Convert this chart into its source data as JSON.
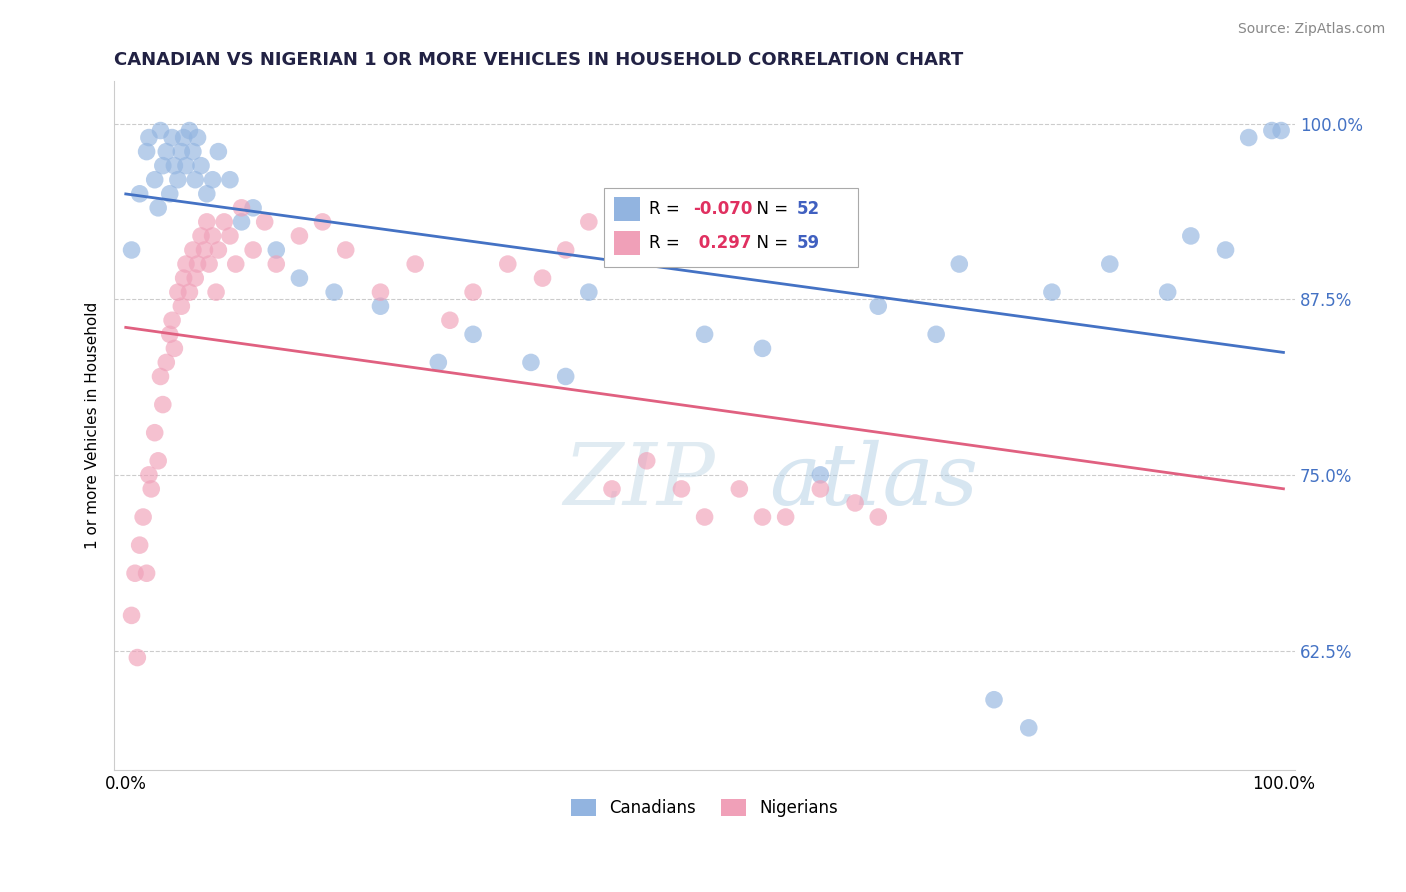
{
  "title": "CANADIAN VS NIGERIAN 1 OR MORE VEHICLES IN HOUSEHOLD CORRELATION CHART",
  "source": "Source: ZipAtlas.com",
  "ylabel": "1 or more Vehicles in Household",
  "yticks": [
    62.5,
    75.0,
    87.5,
    100.0
  ],
  "R_canadian": -0.07,
  "N_canadian": 52,
  "R_nigerian": 0.297,
  "N_nigerian": 59,
  "canadian_color": "#92b4e0",
  "nigerian_color": "#f0a0b8",
  "trendline_canadian_color": "#4472c4",
  "trendline_nigerian_color": "#e06080",
  "legend_R_color": "#e03060",
  "legend_N_color": "#4060c0",
  "watermark_color": "#d0e4f5",
  "canadian_x": [
    0.5,
    1.2,
    1.8,
    2.0,
    2.5,
    2.8,
    3.0,
    3.2,
    3.5,
    3.8,
    4.0,
    4.2,
    4.5,
    4.8,
    5.0,
    5.2,
    5.5,
    5.8,
    6.0,
    6.2,
    6.5,
    7.0,
    7.5,
    8.0,
    9.0,
    10.0,
    11.0,
    13.0,
    15.0,
    18.0,
    22.0,
    27.0,
    30.0,
    35.0,
    38.0,
    40.0,
    50.0,
    55.0,
    60.0,
    65.0,
    70.0,
    72.0,
    75.0,
    78.0,
    80.0,
    85.0,
    90.0,
    92.0,
    95.0,
    97.0,
    99.0,
    99.8
  ],
  "canadian_y": [
    91.0,
    95.0,
    98.0,
    99.0,
    96.0,
    94.0,
    99.5,
    97.0,
    98.0,
    95.0,
    99.0,
    97.0,
    96.0,
    98.0,
    99.0,
    97.0,
    99.5,
    98.0,
    96.0,
    99.0,
    97.0,
    95.0,
    96.0,
    98.0,
    96.0,
    93.0,
    94.0,
    91.0,
    89.0,
    88.0,
    87.0,
    83.0,
    85.0,
    83.0,
    82.0,
    88.0,
    85.0,
    84.0,
    75.0,
    87.0,
    85.0,
    90.0,
    59.0,
    57.0,
    88.0,
    90.0,
    88.0,
    92.0,
    91.0,
    99.0,
    99.5,
    99.5
  ],
  "nigerian_x": [
    0.5,
    0.8,
    1.0,
    1.2,
    1.5,
    1.8,
    2.0,
    2.2,
    2.5,
    2.8,
    3.0,
    3.2,
    3.5,
    3.8,
    4.0,
    4.2,
    4.5,
    4.8,
    5.0,
    5.2,
    5.5,
    5.8,
    6.0,
    6.2,
    6.5,
    6.8,
    7.0,
    7.2,
    7.5,
    7.8,
    8.0,
    8.5,
    9.0,
    9.5,
    10.0,
    11.0,
    12.0,
    13.0,
    15.0,
    17.0,
    19.0,
    22.0,
    25.0,
    28.0,
    30.0,
    33.0,
    36.0,
    38.0,
    40.0,
    42.0,
    45.0,
    48.0,
    50.0,
    53.0,
    55.0,
    57.0,
    60.0,
    63.0,
    65.0
  ],
  "nigerian_y": [
    65.0,
    68.0,
    62.0,
    70.0,
    72.0,
    68.0,
    75.0,
    74.0,
    78.0,
    76.0,
    82.0,
    80.0,
    83.0,
    85.0,
    86.0,
    84.0,
    88.0,
    87.0,
    89.0,
    90.0,
    88.0,
    91.0,
    89.0,
    90.0,
    92.0,
    91.0,
    93.0,
    90.0,
    92.0,
    88.0,
    91.0,
    93.0,
    92.0,
    90.0,
    94.0,
    91.0,
    93.0,
    90.0,
    92.0,
    93.0,
    91.0,
    88.0,
    90.0,
    86.0,
    88.0,
    90.0,
    89.0,
    91.0,
    93.0,
    74.0,
    76.0,
    74.0,
    72.0,
    74.0,
    72.0,
    72.0,
    74.0,
    73.0,
    72.0
  ]
}
